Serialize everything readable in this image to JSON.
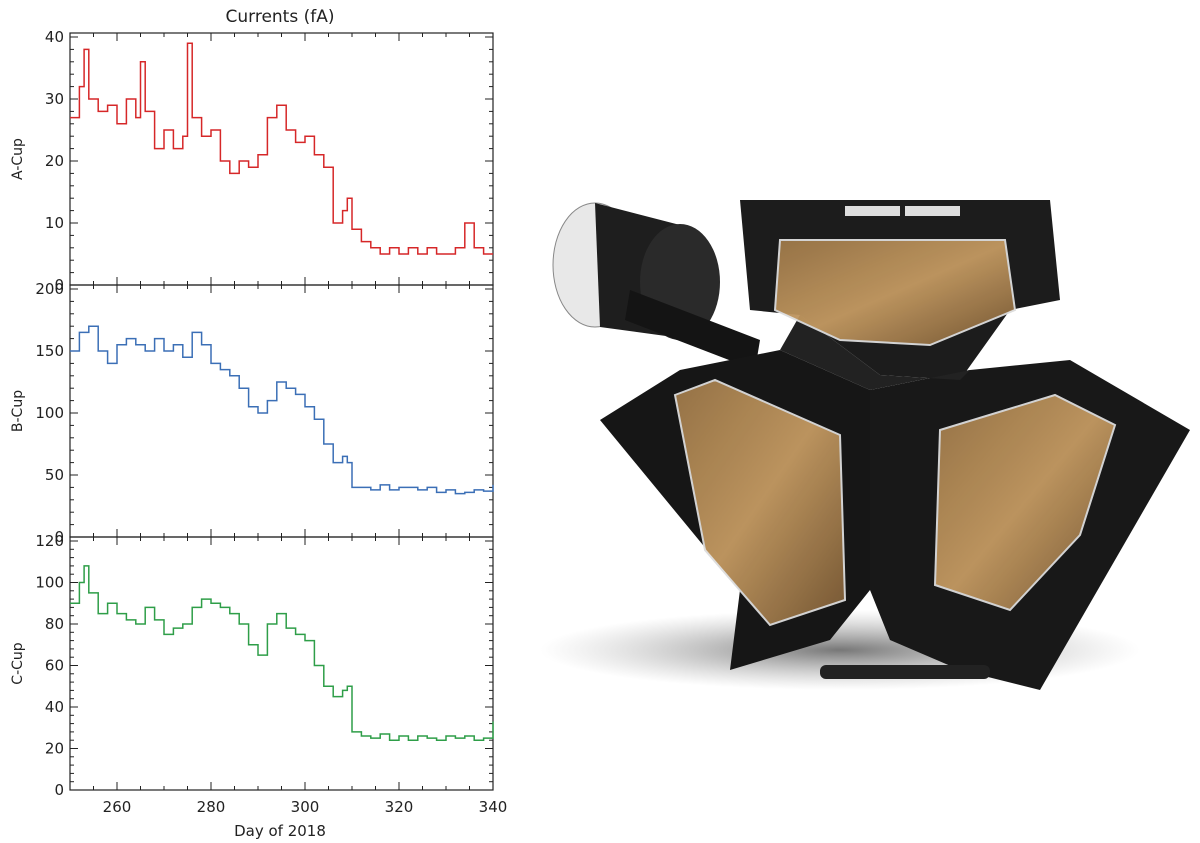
{
  "chart_data": {
    "type": "line",
    "title": "Currents (fA)",
    "xlabel": "Day of 2018",
    "xlim": [
      250,
      340
    ],
    "xticks": [
      260,
      280,
      300,
      320,
      340
    ],
    "panels": [
      {
        "name": "A-Cup",
        "ylabel": "A-Cup",
        "color": "#d62728",
        "ylim": [
          0,
          40
        ],
        "yticks": [
          0,
          10,
          20,
          30,
          40
        ],
        "x": [
          250,
          252,
          253,
          254,
          256,
          258,
          260,
          262,
          264,
          265,
          266,
          268,
          270,
          272,
          274,
          275,
          276,
          278,
          280,
          282,
          284,
          286,
          288,
          290,
          292,
          294,
          296,
          298,
          300,
          302,
          304,
          306,
          308,
          309,
          310,
          312,
          314,
          316,
          318,
          320,
          322,
          324,
          326,
          328,
          330,
          332,
          334,
          336,
          338,
          340
        ],
        "values": [
          27,
          32,
          38,
          30,
          28,
          29,
          26,
          30,
          27,
          36,
          28,
          22,
          25,
          22,
          24,
          39,
          27,
          24,
          25,
          20,
          18,
          20,
          19,
          21,
          27,
          29,
          25,
          23,
          24,
          21,
          19,
          10,
          12,
          14,
          9,
          7,
          6,
          5,
          6,
          5,
          6,
          5,
          6,
          5,
          5,
          6,
          10,
          6,
          5,
          5
        ]
      },
      {
        "name": "B-Cup",
        "ylabel": "B-Cup",
        "color": "#3b6fb6",
        "ylim": [
          0,
          200
        ],
        "yticks": [
          0,
          50,
          100,
          150,
          200
        ],
        "x": [
          250,
          252,
          254,
          256,
          258,
          260,
          262,
          264,
          266,
          268,
          270,
          272,
          274,
          276,
          278,
          280,
          282,
          284,
          286,
          288,
          290,
          292,
          294,
          296,
          298,
          300,
          302,
          304,
          306,
          308,
          309,
          310,
          312,
          314,
          316,
          318,
          320,
          322,
          324,
          326,
          328,
          330,
          332,
          334,
          336,
          338,
          340
        ],
        "values": [
          150,
          165,
          170,
          150,
          140,
          155,
          160,
          155,
          150,
          160,
          150,
          155,
          145,
          165,
          155,
          140,
          135,
          130,
          120,
          105,
          100,
          110,
          125,
          120,
          115,
          105,
          95,
          75,
          60,
          65,
          60,
          40,
          40,
          38,
          42,
          38,
          40,
          40,
          38,
          40,
          36,
          38,
          35,
          36,
          38,
          37,
          42
        ]
      },
      {
        "name": "C-Cup",
        "ylabel": "C-Cup",
        "color": "#2e9e48",
        "ylim": [
          0,
          120
        ],
        "yticks": [
          0,
          20,
          40,
          60,
          80,
          100,
          120
        ],
        "x": [
          250,
          252,
          253,
          254,
          256,
          258,
          260,
          262,
          264,
          266,
          268,
          270,
          272,
          274,
          276,
          278,
          280,
          282,
          284,
          286,
          288,
          290,
          292,
          294,
          296,
          298,
          300,
          302,
          304,
          306,
          308,
          309,
          310,
          312,
          314,
          316,
          318,
          320,
          322,
          324,
          326,
          328,
          330,
          332,
          334,
          336,
          338,
          340
        ],
        "values": [
          90,
          100,
          108,
          95,
          85,
          90,
          85,
          82,
          80,
          88,
          82,
          75,
          78,
          80,
          88,
          92,
          90,
          88,
          85,
          80,
          70,
          65,
          80,
          85,
          78,
          75,
          72,
          60,
          50,
          45,
          48,
          50,
          28,
          26,
          25,
          27,
          24,
          26,
          24,
          26,
          25,
          24,
          26,
          25,
          26,
          24,
          25,
          33
        ]
      }
    ]
  },
  "photo": {
    "icon": "faraday-cup-instrument-icon",
    "body_color": "#1a1a1a",
    "window_color": "#b08a55"
  }
}
